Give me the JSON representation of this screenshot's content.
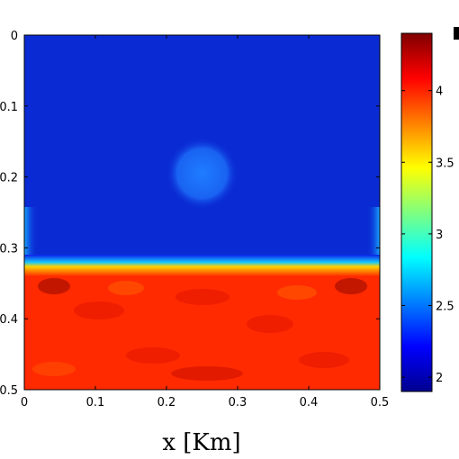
{
  "chart_data": {
    "type": "heatmap",
    "title": "",
    "xlabel": "x [Km]",
    "ylabel": "",
    "xlim": [
      0,
      0.5
    ],
    "ylim": [
      0.5,
      0
    ],
    "x_ticks": [
      "0",
      "0.1",
      "0.2",
      "0.3",
      "0.4",
      "0.5"
    ],
    "y_ticks": [
      "0",
      "0.1",
      "0.2",
      "0.3",
      "0.4",
      "0.5"
    ],
    "colormap": "jet",
    "clim": [
      1.9,
      4.4
    ],
    "colorbar_ticks": [
      "2",
      "2.5",
      "3",
      "3.5",
      "4"
    ],
    "field": {
      "background_upper_value": 2.0,
      "interface_depth": 0.33,
      "lower_layer_value": 4.05,
      "inclusion": {
        "x_center": 0.25,
        "z_center": 0.195,
        "radius": 0.05,
        "value": 2.3
      }
    }
  }
}
